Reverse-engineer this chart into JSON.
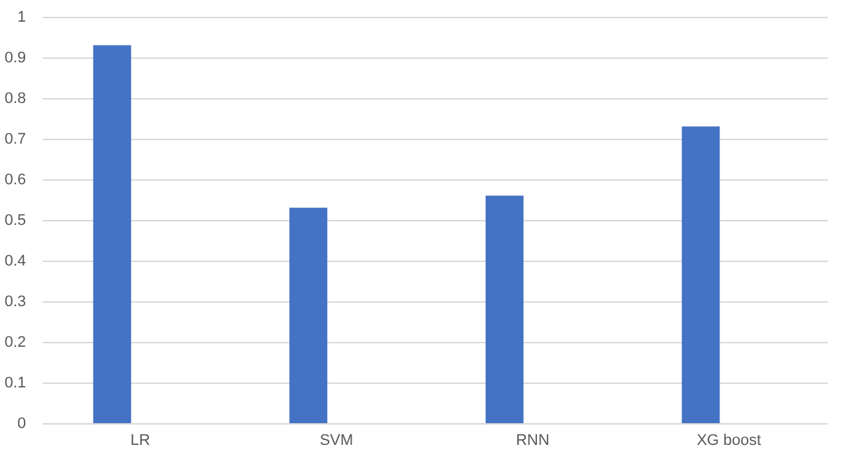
{
  "chart_data": {
    "type": "bar",
    "categories": [
      "LR",
      "SVM",
      "RNN",
      "XG boost"
    ],
    "values": [
      0.93,
      0.53,
      0.56,
      0.73
    ],
    "color": "#4472c4",
    "ylim": [
      0,
      1
    ],
    "yticks": [
      0,
      0.1,
      0.2,
      0.3,
      0.4,
      0.5,
      0.6,
      0.7,
      0.8,
      0.9,
      1
    ],
    "grid": "y"
  }
}
